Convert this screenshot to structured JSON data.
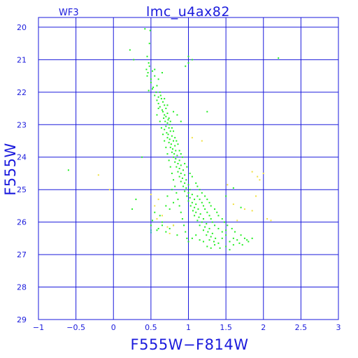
{
  "header": {
    "left_label": "WF3",
    "title": "lmc_u4ax82"
  },
  "chart_data": {
    "type": "scatter",
    "title": "lmc_u4ax82",
    "subtitle": "WF3",
    "xlabel": "F555W−F814W",
    "ylabel": "F555W",
    "xlim": [
      -1,
      3
    ],
    "ylim": [
      29,
      19.7
    ],
    "y_inverted": true,
    "grid": true,
    "x_ticks": [
      -1,
      -0.5,
      0,
      0.5,
      1,
      1.5,
      2,
      2.5,
      3
    ],
    "x_tick_labels": [
      "−1",
      "−0.5",
      "0",
      "0.5",
      "1",
      "1.5",
      "2",
      "2.5",
      "3"
    ],
    "y_ticks": [
      20,
      21,
      22,
      23,
      24,
      25,
      26,
      27,
      28,
      29
    ],
    "y_tick_labels": [
      "20",
      "21",
      "22",
      "23",
      "24",
      "25",
      "26",
      "27",
      "28",
      "29"
    ],
    "colors": {
      "axis": "#1a1adc",
      "green": "#22ee22",
      "yellow": "#f0e040",
      "cyan": "#22b0b0"
    },
    "series": [
      {
        "color": "green",
        "points": [
          [
            0.42,
            20.05
          ],
          [
            0.49,
            20.1
          ],
          [
            0.22,
            20.7
          ],
          [
            0.27,
            21.0
          ],
          [
            0.48,
            20.5
          ],
          [
            0.45,
            20.9
          ],
          [
            1.0,
            20.9
          ],
          [
            1.05,
            21.0
          ],
          [
            0.96,
            21.2
          ],
          [
            1.0,
            21.1
          ],
          [
            2.2,
            20.95
          ],
          [
            1.25,
            22.6
          ],
          [
            0.48,
            21.2
          ],
          [
            0.52,
            21.35
          ],
          [
            0.45,
            21.5
          ],
          [
            0.55,
            21.5
          ],
          [
            0.5,
            21.7
          ],
          [
            0.58,
            21.8
          ],
          [
            0.52,
            21.9
          ],
          [
            0.47,
            21.95
          ],
          [
            0.6,
            21.6
          ],
          [
            0.65,
            21.4
          ],
          [
            0.55,
            21.3
          ],
          [
            0.62,
            22.0
          ],
          [
            0.55,
            22.1
          ],
          [
            0.6,
            22.15
          ],
          [
            0.64,
            22.2
          ],
          [
            0.58,
            22.25
          ],
          [
            0.66,
            22.3
          ],
          [
            0.6,
            22.35
          ],
          [
            0.68,
            22.4
          ],
          [
            0.62,
            22.45
          ],
          [
            0.7,
            22.5
          ],
          [
            0.65,
            22.55
          ],
          [
            0.66,
            22.6
          ],
          [
            0.72,
            22.65
          ],
          [
            0.68,
            22.7
          ],
          [
            0.7,
            22.75
          ],
          [
            0.67,
            22.8
          ],
          [
            0.73,
            22.85
          ],
          [
            0.69,
            22.9
          ],
          [
            0.72,
            22.95
          ],
          [
            0.75,
            23.0
          ],
          [
            0.7,
            23.05
          ],
          [
            0.74,
            23.1
          ],
          [
            0.68,
            23.15
          ],
          [
            0.76,
            23.2
          ],
          [
            0.71,
            23.25
          ],
          [
            0.73,
            23.3
          ],
          [
            0.78,
            23.35
          ],
          [
            0.72,
            23.4
          ],
          [
            0.75,
            23.45
          ],
          [
            0.8,
            23.5
          ],
          [
            0.74,
            23.55
          ],
          [
            0.77,
            23.6
          ],
          [
            0.82,
            23.65
          ],
          [
            0.76,
            23.7
          ],
          [
            0.79,
            23.75
          ],
          [
            0.83,
            23.8
          ],
          [
            0.78,
            23.85
          ],
          [
            0.81,
            23.9
          ],
          [
            0.85,
            23.95
          ],
          [
            0.8,
            24.0
          ],
          [
            0.83,
            24.05
          ],
          [
            0.88,
            24.1
          ],
          [
            0.82,
            24.15
          ],
          [
            0.86,
            24.2
          ],
          [
            0.9,
            24.25
          ],
          [
            0.84,
            24.3
          ],
          [
            0.88,
            24.35
          ],
          [
            0.93,
            24.4
          ],
          [
            0.86,
            24.45
          ],
          [
            0.9,
            24.5
          ],
          [
            0.95,
            24.55
          ],
          [
            0.88,
            24.6
          ],
          [
            0.92,
            24.65
          ],
          [
            0.97,
            24.7
          ],
          [
            0.9,
            24.75
          ],
          [
            0.95,
            24.8
          ],
          [
            1.0,
            24.85
          ],
          [
            0.93,
            24.9
          ],
          [
            0.97,
            24.95
          ],
          [
            1.02,
            25.0
          ],
          [
            0.95,
            25.05
          ],
          [
            1.0,
            25.1
          ],
          [
            1.05,
            25.15
          ],
          [
            0.98,
            25.2
          ],
          [
            1.02,
            25.25
          ],
          [
            1.08,
            25.3
          ],
          [
            1.0,
            25.35
          ],
          [
            1.05,
            25.4
          ],
          [
            1.1,
            25.45
          ],
          [
            1.03,
            25.5
          ],
          [
            1.08,
            25.55
          ],
          [
            1.13,
            25.6
          ],
          [
            1.06,
            25.65
          ],
          [
            1.1,
            25.7
          ],
          [
            1.16,
            25.75
          ],
          [
            1.08,
            25.8
          ],
          [
            1.14,
            25.85
          ],
          [
            1.2,
            25.9
          ],
          [
            1.12,
            25.95
          ],
          [
            1.18,
            26.0
          ],
          [
            1.24,
            26.05
          ],
          [
            1.15,
            26.1
          ],
          [
            1.22,
            26.15
          ],
          [
            1.28,
            26.2
          ],
          [
            1.2,
            26.25
          ],
          [
            1.26,
            26.3
          ],
          [
            1.32,
            26.35
          ],
          [
            1.24,
            26.4
          ],
          [
            1.3,
            26.45
          ],
          [
            1.36,
            26.5
          ],
          [
            1.28,
            26.55
          ],
          [
            1.34,
            26.6
          ],
          [
            1.4,
            26.65
          ],
          [
            1.45,
            26.5
          ],
          [
            1.5,
            26.4
          ],
          [
            1.55,
            26.6
          ],
          [
            1.6,
            26.5
          ],
          [
            1.65,
            26.55
          ],
          [
            1.7,
            26.4
          ],
          [
            1.75,
            26.5
          ],
          [
            1.8,
            26.6
          ],
          [
            1.62,
            26.3
          ],
          [
            1.58,
            26.2
          ],
          [
            1.52,
            26.1
          ],
          [
            1.48,
            26.0
          ],
          [
            1.45,
            25.9
          ],
          [
            1.4,
            25.8
          ],
          [
            1.38,
            25.7
          ],
          [
            1.35,
            25.6
          ],
          [
            1.3,
            25.5
          ],
          [
            1.28,
            25.4
          ],
          [
            1.25,
            25.3
          ],
          [
            1.22,
            25.2
          ],
          [
            1.18,
            25.1
          ],
          [
            1.15,
            25.0
          ],
          [
            1.12,
            24.9
          ],
          [
            1.1,
            24.8
          ],
          [
            1.05,
            24.6
          ],
          [
            1.02,
            24.5
          ],
          [
            0.98,
            24.3
          ],
          [
            0.95,
            24.2
          ],
          [
            0.92,
            24.0
          ],
          [
            0.9,
            23.9
          ],
          [
            0.88,
            23.8
          ],
          [
            0.86,
            23.6
          ],
          [
            0.84,
            23.5
          ],
          [
            0.82,
            23.4
          ],
          [
            0.8,
            23.2
          ],
          [
            0.78,
            23.1
          ],
          [
            0.76,
            22.9
          ],
          [
            0.74,
            22.8
          ],
          [
            0.6,
            22.5
          ],
          [
            0.58,
            22.7
          ],
          [
            0.62,
            22.9
          ],
          [
            0.64,
            23.1
          ],
          [
            0.66,
            23.3
          ],
          [
            0.68,
            23.5
          ],
          [
            0.7,
            23.7
          ],
          [
            0.72,
            23.9
          ],
          [
            0.74,
            24.1
          ],
          [
            0.76,
            24.3
          ],
          [
            0.78,
            24.5
          ],
          [
            0.8,
            24.7
          ],
          [
            0.82,
            24.9
          ],
          [
            0.84,
            25.1
          ],
          [
            0.86,
            25.3
          ],
          [
            0.88,
            25.5
          ],
          [
            0.9,
            25.7
          ],
          [
            0.92,
            25.9
          ],
          [
            0.94,
            26.1
          ],
          [
            0.96,
            26.3
          ],
          [
            0.98,
            26.5
          ],
          [
            1.0,
            26.6
          ],
          [
            1.05,
            26.5
          ],
          [
            1.1,
            26.4
          ],
          [
            1.15,
            26.55
          ],
          [
            1.2,
            26.6
          ],
          [
            0.6,
            26.2
          ],
          [
            0.65,
            26.1
          ],
          [
            0.7,
            26.3
          ],
          [
            0.75,
            26.2
          ],
          [
            0.8,
            26.1
          ],
          [
            0.85,
            26.4
          ],
          [
            0.62,
            25.8
          ],
          [
            0.7,
            25.5
          ],
          [
            0.75,
            25.6
          ],
          [
            0.8,
            25.4
          ],
          [
            0.72,
            25.2
          ],
          [
            0.78,
            25.0
          ],
          [
            1.3,
            26.8
          ],
          [
            1.35,
            26.7
          ],
          [
            1.42,
            26.8
          ],
          [
            1.5,
            26.75
          ],
          [
            1.55,
            26.85
          ],
          [
            1.25,
            26.75
          ],
          [
            1.6,
            26.7
          ],
          [
            1.68,
            26.65
          ],
          [
            1.72,
            26.7
          ],
          [
            1.78,
            26.55
          ],
          [
            1.85,
            26.5
          ],
          [
            1.4,
            26.2
          ],
          [
            1.45,
            26.3
          ],
          [
            1.5,
            26.25
          ],
          [
            1.35,
            26.1
          ],
          [
            1.32,
            26.0
          ],
          [
            1.3,
            25.9
          ],
          [
            1.28,
            25.8
          ],
          [
            1.25,
            25.7
          ],
          [
            1.22,
            25.6
          ],
          [
            1.2,
            25.5
          ],
          [
            1.18,
            25.4
          ],
          [
            1.15,
            25.3
          ],
          [
            1.12,
            25.2
          ],
          [
            0.25,
            25.6
          ],
          [
            0.3,
            25.3
          ],
          [
            -0.6,
            24.4
          ],
          [
            0.38,
            24.0
          ],
          [
            0.55,
            25.7
          ],
          [
            0.65,
            26.0
          ],
          [
            1.5,
            25.2
          ],
          [
            1.6,
            24.95
          ],
          [
            1.7,
            25.55
          ],
          [
            0.5,
            26.1
          ],
          [
            0.58,
            26.25
          ],
          [
            0.52,
            25.95
          ],
          [
            0.9,
            22.9
          ],
          [
            0.85,
            22.7
          ],
          [
            0.8,
            22.6
          ],
          [
            0.72,
            22.4
          ],
          [
            0.68,
            22.2
          ],
          [
            0.63,
            22.1
          ],
          [
            0.57,
            22.0
          ],
          [
            0.53,
            21.85
          ],
          [
            0.5,
            21.6
          ],
          [
            0.46,
            21.4
          ],
          [
            0.44,
            21.3
          ],
          [
            0.47,
            21.1
          ]
        ]
      },
      {
        "color": "yellow",
        "points": [
          [
            -0.2,
            24.55
          ],
          [
            -0.05,
            25.0
          ],
          [
            0.5,
            25.15
          ],
          [
            0.6,
            25.3
          ],
          [
            0.55,
            25.5
          ],
          [
            0.58,
            25.9
          ],
          [
            0.75,
            26.35
          ],
          [
            0.8,
            26.1
          ],
          [
            0.65,
            25.8
          ],
          [
            0.72,
            26.15
          ],
          [
            1.05,
            23.4
          ],
          [
            1.18,
            23.5
          ],
          [
            1.52,
            24.85
          ],
          [
            1.6,
            25.45
          ],
          [
            1.75,
            25.6
          ],
          [
            1.85,
            25.65
          ],
          [
            1.9,
            25.2
          ],
          [
            1.92,
            24.6
          ],
          [
            2.0,
            24.5
          ],
          [
            1.85,
            24.45
          ],
          [
            1.95,
            24.7
          ],
          [
            2.05,
            25.9
          ],
          [
            2.1,
            25.95
          ],
          [
            1.65,
            25.95
          ]
        ]
      },
      {
        "color": "cyan",
        "points": [
          [
            0.5,
            26.25
          ],
          [
            0.5,
            26.32
          ]
        ]
      }
    ]
  }
}
